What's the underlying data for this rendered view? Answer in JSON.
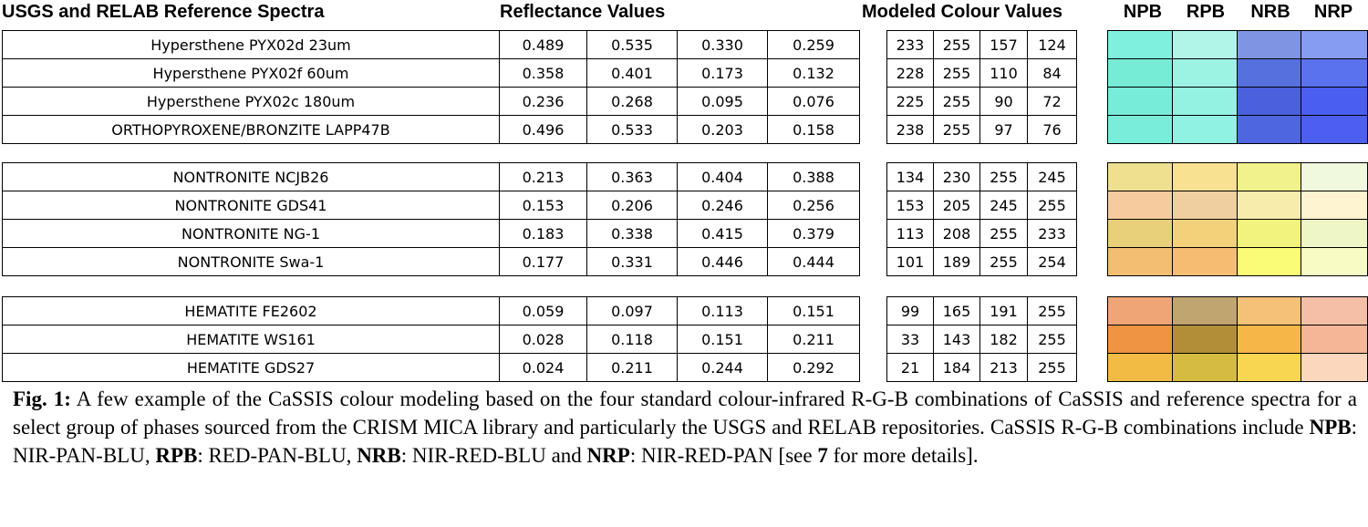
{
  "headers": {
    "reference": "USGS and RELAB Reference Spectra",
    "reflectance": "Reflectance Values",
    "modeled": "Modeled Colour Values",
    "combos": [
      "NPB",
      "RPB",
      "NRB",
      "NRP"
    ]
  },
  "groups": [
    {
      "rows": [
        {
          "name": "Hypersthene PYX02d 23um",
          "refl": [
            "0.489",
            "0.535",
            "0.330",
            "0.259"
          ],
          "rgb": [
            "233",
            "255",
            "157",
            "124"
          ],
          "swatches": [
            "#7ff0dd",
            "#b0f5e8",
            "#7f94e2",
            "#859cf2"
          ]
        },
        {
          "name": "Hypersthene PYX02f 60um",
          "refl": [
            "0.358",
            "0.401",
            "0.173",
            "0.132"
          ],
          "rgb": [
            "228",
            "255",
            "110",
            "84"
          ],
          "swatches": [
            "#76ebd6",
            "#9cf3e4",
            "#5670dc",
            "#5a72ed"
          ]
        },
        {
          "name": "Hypersthene PYX02c 180um",
          "refl": [
            "0.236",
            "0.268",
            "0.095",
            "0.076"
          ],
          "rgb": [
            "225",
            "255",
            "90",
            "72"
          ],
          "swatches": [
            "#77ecd9",
            "#93f2e2",
            "#4a60dc",
            "#4a5ef0"
          ]
        },
        {
          "name": "ORTHOPYROXENE/BRONZITE LAPP47B",
          "refl": [
            "0.496",
            "0.533",
            "0.203",
            "0.158"
          ],
          "rgb": [
            "238",
            "255",
            "97",
            "76"
          ],
          "swatches": [
            "#7aedda",
            "#8ff2e2",
            "#4f66e1",
            "#4c5ff0"
          ]
        }
      ]
    },
    {
      "rows": [
        {
          "name": "NONTRONITE NCJB26",
          "refl": [
            "0.213",
            "0.363",
            "0.404",
            "0.388"
          ],
          "rgb": [
            "134",
            "230",
            "255",
            "245"
          ],
          "swatches": [
            "#efe08f",
            "#f8e191",
            "#f1f28b",
            "#f0f9de"
          ]
        },
        {
          "name": "NONTRONITE GDS41",
          "refl": [
            "0.153",
            "0.206",
            "0.246",
            "0.256"
          ],
          "rgb": [
            "153",
            "205",
            "245",
            "255"
          ],
          "swatches": [
            "#f6cc9e",
            "#efcf9f",
            "#f8ecad",
            "#fef4d1"
          ]
        },
        {
          "name": "NONTRONITE NG-1",
          "refl": [
            "0.183",
            "0.338",
            "0.415",
            "0.379"
          ],
          "rgb": [
            "113",
            "208",
            "255",
            "233"
          ],
          "swatches": [
            "#e8cf79",
            "#f3d17b",
            "#f1f37e",
            "#eef6c6"
          ]
        },
        {
          "name": "NONTRONITE Swa-1",
          "refl": [
            "0.177",
            "0.331",
            "0.446",
            "0.444"
          ],
          "rgb": [
            "101",
            "189",
            "255",
            "254"
          ],
          "swatches": [
            "#f3bd72",
            "#f5bc72",
            "#fafb76",
            "#f8fbc4"
          ]
        }
      ]
    },
    {
      "rows": [
        {
          "name": "HEMATITE FE2602",
          "refl": [
            "0.059",
            "0.097",
            "0.113",
            "0.151"
          ],
          "rgb": [
            "99",
            "165",
            "191",
            "255"
          ],
          "swatches": [
            "#f0a577",
            "#c0a570",
            "#f5c078",
            "#f5bea6"
          ]
        },
        {
          "name": "HEMATITE WS161",
          "refl": [
            "0.028",
            "0.118",
            "0.151",
            "0.211"
          ],
          "rgb": [
            "33",
            "143",
            "182",
            "255"
          ],
          "swatches": [
            "#ef9442",
            "#b28e38",
            "#f6b749",
            "#f4b697"
          ]
        },
        {
          "name": "HEMATITE GDS27",
          "refl": [
            "0.024",
            "0.211",
            "0.244",
            "0.292"
          ],
          "rgb": [
            "21",
            "184",
            "213",
            "255"
          ],
          "swatches": [
            "#f2bb44",
            "#d5bb41",
            "#f8d651",
            "#fad7bd"
          ]
        }
      ]
    }
  ],
  "caption": {
    "fig_label": "Fig. 1:",
    "part1": " A few example of the CaSSIS colour modeling based on the four standard colour-infrared R-G-B combinations of CaSSIS and reference spectra for a select group of phases sourced from the CRISM MICA library and particularly the USGS and RELAB repositories. CaSSIS R-G-B combinations include ",
    "npb": "NPB",
    "npb_def": ": NIR-PAN-BLU, ",
    "rpb": "RPB",
    "rpb_def": ": RED-PAN-BLU, ",
    "nrb": "NRB",
    "nrb_def": ": NIR-RED-BLU and ",
    "nrp": "NRP",
    "nrp_def": ": NIR-RED-PAN [see ",
    "ref_num": "7",
    "end": " for more details]."
  }
}
